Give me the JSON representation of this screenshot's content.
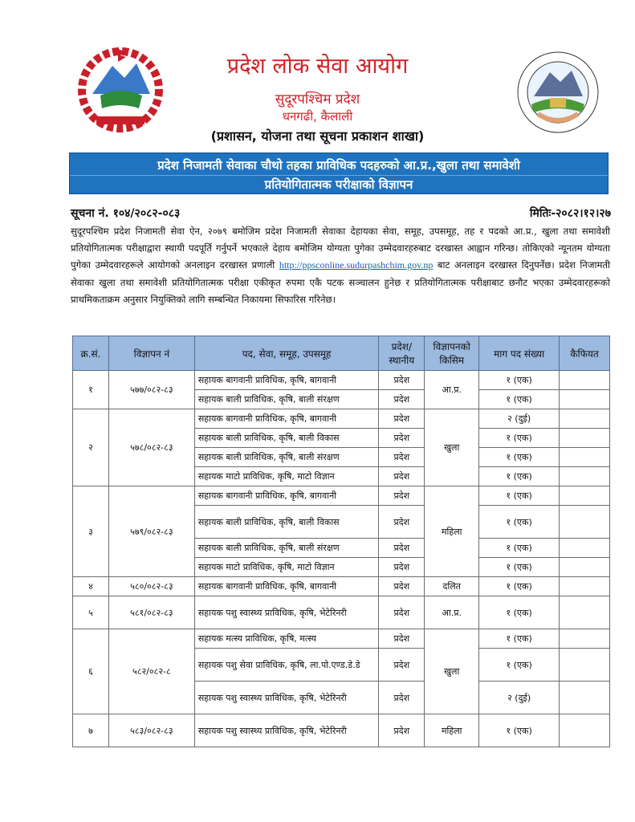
{
  "header": {
    "left_logo": "nepal-government-emblem",
    "right_logo": "provincial-public-service-commission-seal",
    "org_name": "प्रदेश लोक सेवा आयोग",
    "province": "सुदूरपश्चिम प्रदेश",
    "location": "धनगढी, कैलाली",
    "branch": "(प्रशासन, योजना तथा सूचना प्रकाशन शाखा)"
  },
  "banner": {
    "line1": "प्रदेश निजामती सेवाका चौथो तहका प्राविधिक पदहरुको आ.प्र.,खुला तथा समावेशी",
    "line2": "प्रतियोगितात्मक परीक्षाको विज्ञापन",
    "color": "#1f73bf"
  },
  "notice": {
    "number": "सूचना नं. १०४/२०८२-०८३",
    "date": "मितिः-२०८२।१२।२७",
    "body_before_link": "सुदूरपश्चिम प्रदेश निजामती सेवा ऐन, २०७९ बमोजिम प्रदेश निजामती सेवाका देहायका सेवा, समूह, उपसमूह, तह र पदको आ.प्र., खुला तथा समावेशी प्रतियोगितात्मक परीक्षाद्वारा स्थायी पदपूर्ति गर्नुपर्ने भएकाले देहाय बमोजिम योग्यता पुगेका उम्मेदवारहरुबाट दरखास्त आह्वान गरिन्छ। तोकिएको न्यूनतम योग्यता पुगेका उम्मेदवारहरूले आयोगको अनलाइन दरखास्त प्रणाली ",
    "link": "http://ppsconline.sudurpashchim.gov.np",
    "body_after_link": " बाट अनलाइन दरखास्त दिनुपर्नेछ। प्रदेश निजामती सेवाका खुला तथा समावेशी प्रतियोगितात्मक परीक्षा एकीकृत रुपमा एकै पटक सञ्चालन हुनेछ र प्रतियोगितात्मक परीक्षाबाट छनौट भएका उम्मेदवारहरूको प्राथमिकताक्रम अनुसार नियुक्तिको लागि सम्बन्धित निकायमा सिफारिस गरिनेछ।"
  },
  "table": {
    "header_color": "#9cb9e0",
    "columns": [
      "क्र.सं.",
      "विज्ञापन नं",
      "पद, सेवा, समूह, उपसमूह",
      "प्रदेश/ स्थानीय",
      "विज्ञापनको किसिम",
      "माग पद संख्या",
      "कैफियत"
    ],
    "groups": [
      {
        "sn": "१",
        "adv_no": "५७७/०८२-८३",
        "type": "आ.प्र.",
        "posts": [
          {
            "title": "सहायक बागवानी प्राविधिक, कृषि, बागवानी",
            "level": "प्रदेश",
            "count": "१ (एक)",
            "tall": false
          },
          {
            "title": "सहायक बाली प्राविधिक, कृषि, बाली संरक्षण",
            "level": "प्रदेश",
            "count": "१ (एक)",
            "tall": false
          }
        ]
      },
      {
        "sn": "२",
        "adv_no": "५७८/०८२-८३",
        "type": "खुला",
        "posts": [
          {
            "title": "सहायक बागवानी प्राविधिक, कृषि, बागवानी",
            "level": "प्रदेश",
            "count": "२ (दुई)",
            "tall": false
          },
          {
            "title": "सहायक बाली प्राविधिक, कृषि, बाली विकास",
            "level": "प्रदेश",
            "count": "१ (एक)",
            "tall": false
          },
          {
            "title": "सहायक बाली प्राविधिक, कृषि, बाली संरक्षण",
            "level": "प्रदेश",
            "count": "१ (एक)",
            "tall": false
          },
          {
            "title": "सहायक माटो प्राविधिक, कृषि, माटो विज्ञान",
            "level": "प्रदेश",
            "count": "१ (एक)",
            "tall": false
          }
        ]
      },
      {
        "sn": "३",
        "adv_no": "५७९/०८२-८३",
        "type": "महिला",
        "posts": [
          {
            "title": "सहायक बागवानी प्राविधिक, कृषि, बागवानी",
            "level": "प्रदेश",
            "count": "१ (एक)",
            "tall": false
          },
          {
            "title": "सहायक बाली प्राविधिक, कृषि, बाली विकास",
            "level": "प्रदेश",
            "count": "१ (एक)",
            "tall": true
          },
          {
            "title": "सहायक बाली प्राविधिक, कृषि, बाली संरक्षण",
            "level": "प्रदेश",
            "count": "१ (एक)",
            "tall": false
          },
          {
            "title": "सहायक माटो प्राविधिक, कृषि, माटो विज्ञान",
            "level": "प्रदेश",
            "count": "१ (एक)",
            "tall": false
          }
        ]
      },
      {
        "sn": "४",
        "adv_no": "५८०/०८२-८३",
        "type": "दलित",
        "posts": [
          {
            "title": "सहायक बागवानी प्राविधिक, कृषि, बागवानी",
            "level": "प्रदेश",
            "count": "१ (एक)",
            "tall": false
          }
        ]
      },
      {
        "sn": "५",
        "adv_no": "५८१/०८२-८३",
        "type": "आ.प्र.",
        "posts": [
          {
            "title": "सहायक पशु स्वास्थ्य प्राविधिक, कृषि, भेटेरिनरी",
            "level": "प्रदेश",
            "count": "१ (एक)",
            "tall": true
          }
        ]
      },
      {
        "sn": "६",
        "adv_no": "५८२/०८२-८",
        "type": "खुला",
        "posts": [
          {
            "title": "सहायक मत्स्य प्राविधिक, कृषि, मत्स्य",
            "level": "प्रदेश",
            "count": "१ (एक)",
            "tall": false
          },
          {
            "title": "सहायक पशु सेवा प्राविधिक, कृषि, ला.पो.एण्ड.डे.डे",
            "level": "प्रदेश",
            "count": "१ (एक)",
            "tall": true
          },
          {
            "title": "सहायक पशु स्वास्थ्य प्राविधिक, कृषि, भेटेरिनरी",
            "level": "प्रदेश",
            "count": "२ (दुई)",
            "tall": true
          }
        ]
      },
      {
        "sn": "७",
        "adv_no": "५८३/०८२-८३",
        "type": "महिला",
        "posts": [
          {
            "title": "सहायक पशु स्वास्थ्य प्राविधिक, कृषि, भेटेरिनरी",
            "level": "प्रदेश",
            "count": "१ (एक)",
            "tall": true
          }
        ]
      }
    ]
  }
}
